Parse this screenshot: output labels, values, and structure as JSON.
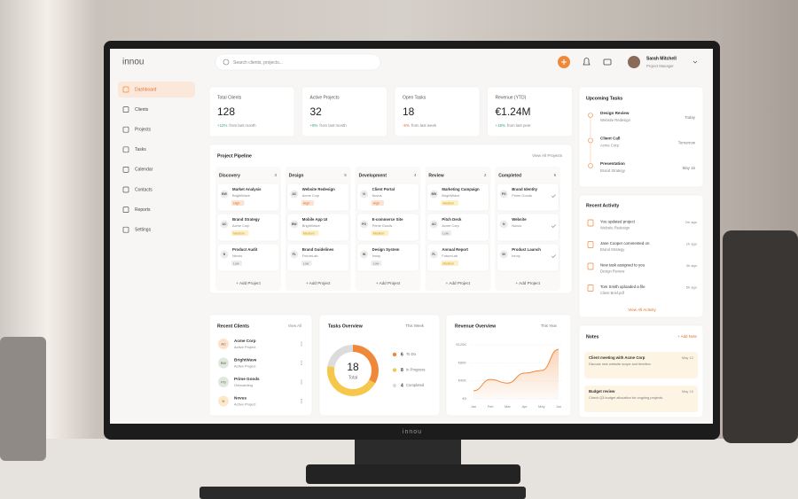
{
  "brand": "innou",
  "search_placeholder": "Search clients, projects...",
  "user": {
    "name": "Sarah Mitchell",
    "role": "Project Manager"
  },
  "nav": [
    "Dashboard",
    "Clients",
    "Projects",
    "Tasks",
    "Calendar",
    "Contacts",
    "Reports",
    "Settings"
  ],
  "stats": [
    {
      "label": "Total Clients",
      "value": "128",
      "change": "+12%",
      "note": "from last month"
    },
    {
      "label": "Active Projects",
      "value": "32",
      "change": "+8%",
      "note": "from last month"
    },
    {
      "label": "Open Tasks",
      "value": "18",
      "change": "-5%",
      "note": "from last week"
    },
    {
      "label": "Revenue (YTD)",
      "value": "€1.24M",
      "change": "+18%",
      "note": "from last year"
    }
  ],
  "pipeline": {
    "title": "Project Pipeline",
    "link": "View All Projects",
    "add": "+ Add Project",
    "columns": [
      {
        "name": "Discovery",
        "count": 3,
        "cards": [
          {
            "initials": "BW",
            "title": "Market Analysis",
            "client": "BrightWave",
            "priority": "High"
          },
          {
            "initials": "AC",
            "title": "Brand Strategy",
            "client": "Acme Corp",
            "priority": "Medium"
          },
          {
            "initials": "N",
            "title": "Product Audit",
            "client": "Nexus",
            "priority": "Low"
          }
        ]
      },
      {
        "name": "Design",
        "count": 5,
        "cards": [
          {
            "initials": "AC",
            "title": "Website Redesign",
            "client": "Acme Corp",
            "priority": "High"
          },
          {
            "initials": "BW",
            "title": "Mobile App UI",
            "client": "BrightWave",
            "priority": "Medium"
          },
          {
            "initials": "FL",
            "title": "Brand Guidelines",
            "client": "FutureLab",
            "priority": "Low"
          }
        ]
      },
      {
        "name": "Development",
        "count": 4,
        "cards": [
          {
            "initials": "N",
            "title": "Client Portal",
            "client": "Novus",
            "priority": "High"
          },
          {
            "initials": "PG",
            "title": "E-commerce Site",
            "client": "Prime Goods",
            "priority": "Medium"
          },
          {
            "initials": "IN",
            "title": "Design System",
            "client": "Innoy",
            "priority": "Low"
          }
        ]
      },
      {
        "name": "Review",
        "count": 2,
        "cards": [
          {
            "initials": "BW",
            "title": "Marketing Campaign",
            "client": "BrightWave",
            "priority": "Medium"
          },
          {
            "initials": "AC",
            "title": "Pitch Deck",
            "client": "Acme Corp",
            "priority": "Low"
          },
          {
            "initials": "FL",
            "title": "Annual Report",
            "client": "FutureLab",
            "priority": "Medium"
          }
        ]
      },
      {
        "name": "Completed",
        "count": 6,
        "cards": [
          {
            "initials": "PG",
            "title": "Brand Identity",
            "client": "Prime Goods"
          },
          {
            "initials": "N",
            "title": "Website",
            "client": "Novus"
          },
          {
            "initials": "IN",
            "title": "Product Launch",
            "client": "Innoy"
          }
        ]
      }
    ]
  },
  "upcoming": {
    "title": "Upcoming Tasks",
    "items": [
      {
        "title": "Design Review",
        "sub": "Website Redesign",
        "when": "Today"
      },
      {
        "title": "Client Call",
        "sub": "Acme Corp",
        "when": "Tomorrow"
      },
      {
        "title": "Presentation",
        "sub": "Brand Strategy",
        "when": "May 16"
      }
    ]
  },
  "activity": {
    "title": "Recent Activity",
    "link": "View All Activity",
    "items": [
      {
        "title": "You updated project",
        "sub": "Website Redesign",
        "when": "2m ago"
      },
      {
        "title": "Jane Cooper commented on",
        "sub": "Brand Strategy",
        "when": "1h ago"
      },
      {
        "title": "New task assigned to you",
        "sub": "Design Review",
        "when": "3h ago"
      },
      {
        "title": "Tom Smith uploaded a file",
        "sub": "Client Brief.pdf",
        "when": "5h ago"
      }
    ]
  },
  "notes": {
    "title": "Notes",
    "add": "+ Add Note",
    "items": [
      {
        "title": "Client meeting with Acme Corp",
        "text": "Discuss new website scope and timeline.",
        "date": "May 12"
      },
      {
        "title": "Budget review",
        "text": "Check Q3 budget allocation for ongoing projects.",
        "date": "May 10"
      }
    ]
  },
  "clients": {
    "title": "Recent Clients",
    "link": "View All",
    "items": [
      {
        "initials": "AC",
        "name": "Acme Corp",
        "status": "Active Project"
      },
      {
        "initials": "BW",
        "name": "BrightWave",
        "status": "Active Project"
      },
      {
        "initials": "PG",
        "name": "Prime Goods",
        "status": "Onboarding"
      },
      {
        "initials": "N",
        "name": "Novus",
        "status": "Active Project"
      }
    ]
  },
  "chart_data": [
    {
      "type": "pie",
      "title": "Tasks Overview",
      "period": "This Week",
      "total": 18,
      "center_label": "Total",
      "categories": [
        "To Do",
        "In Progress",
        "Completed"
      ],
      "values": [
        6,
        8,
        4
      ],
      "colors": [
        "#f0883a",
        "#f5c84c",
        "#dcdcdc"
      ]
    },
    {
      "type": "line",
      "title": "Revenue Overview",
      "period": "This Year",
      "categories": [
        "Jan",
        "Feb",
        "Mar",
        "Apr",
        "May",
        "Jun"
      ],
      "values": [
        18000,
        43000,
        35000,
        57000,
        63000,
        110000
      ],
      "color": "#f0883a",
      "area": true,
      "ylim": [
        0,
        120000
      ],
      "yticks": [
        {
          "value": 0,
          "label": "€0"
        },
        {
          "value": 40000,
          "label": "€40K"
        },
        {
          "value": 80000,
          "label": "€80K"
        },
        {
          "value": 120000,
          "label": "€120K"
        }
      ],
      "grid": true
    }
  ],
  "monitor_label": "innou"
}
